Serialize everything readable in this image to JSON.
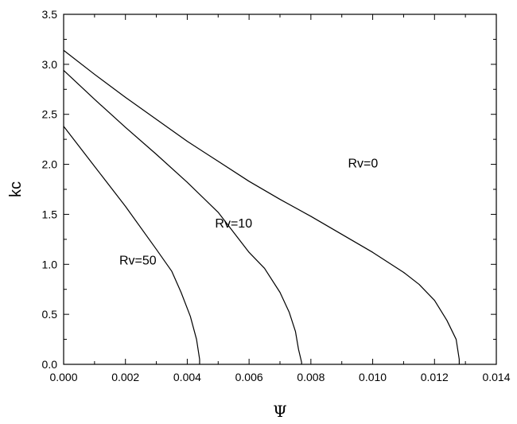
{
  "chart_data": {
    "type": "line",
    "title": "",
    "xlabel": "Ψ",
    "ylabel": "kc",
    "xlim": [
      0.0,
      0.014
    ],
    "ylim": [
      0.0,
      3.5
    ],
    "x_ticks": [
      "0.000",
      "0.002",
      "0.004",
      "0.006",
      "0.008",
      "0.010",
      "0.012",
      "0.014"
    ],
    "y_ticks": [
      "0.0",
      "0.5",
      "1.0",
      "1.5",
      "2.0",
      "2.5",
      "3.0",
      "3.5"
    ],
    "x_tick_values": [
      0.0,
      0.002,
      0.004,
      0.006,
      0.008,
      0.01,
      0.012,
      0.014
    ],
    "y_tick_values": [
      0.0,
      0.5,
      1.0,
      1.5,
      2.0,
      2.5,
      3.0,
      3.5
    ],
    "grid": false,
    "legend": "none",
    "series": [
      {
        "label": "Rv=0",
        "x": [
          0.0,
          0.001,
          0.002,
          0.003,
          0.004,
          0.005,
          0.006,
          0.007,
          0.008,
          0.009,
          0.01,
          0.011,
          0.0115,
          0.012,
          0.0124,
          0.0127,
          0.0128,
          0.0128
        ],
        "y": [
          3.14,
          2.9,
          2.67,
          2.45,
          2.23,
          2.03,
          1.83,
          1.65,
          1.48,
          1.3,
          1.12,
          0.92,
          0.8,
          0.64,
          0.44,
          0.25,
          0.05,
          0.0
        ]
      },
      {
        "label": "Rv=10",
        "x": [
          0.0,
          0.001,
          0.002,
          0.003,
          0.004,
          0.005,
          0.006,
          0.0065,
          0.007,
          0.0073,
          0.0075,
          0.0076,
          0.0077,
          0.0077
        ],
        "y": [
          2.94,
          2.65,
          2.37,
          2.1,
          1.82,
          1.52,
          1.12,
          0.96,
          0.72,
          0.52,
          0.33,
          0.15,
          0.02,
          0.0
        ]
      },
      {
        "label": "Rv=50",
        "x": [
          0.0,
          0.001,
          0.002,
          0.003,
          0.0035,
          0.0038,
          0.0041,
          0.0043,
          0.0044,
          0.0044
        ],
        "y": [
          2.38,
          1.98,
          1.58,
          1.15,
          0.93,
          0.72,
          0.48,
          0.25,
          0.05,
          0.0
        ]
      }
    ],
    "annotations": [
      {
        "text": "Rv=0",
        "x": 0.0092,
        "y": 1.97
      },
      {
        "text": "Rv=10",
        "x": 0.0049,
        "y": 1.37
      },
      {
        "text": "Rv=50",
        "x": 0.0018,
        "y": 1.0
      }
    ]
  }
}
